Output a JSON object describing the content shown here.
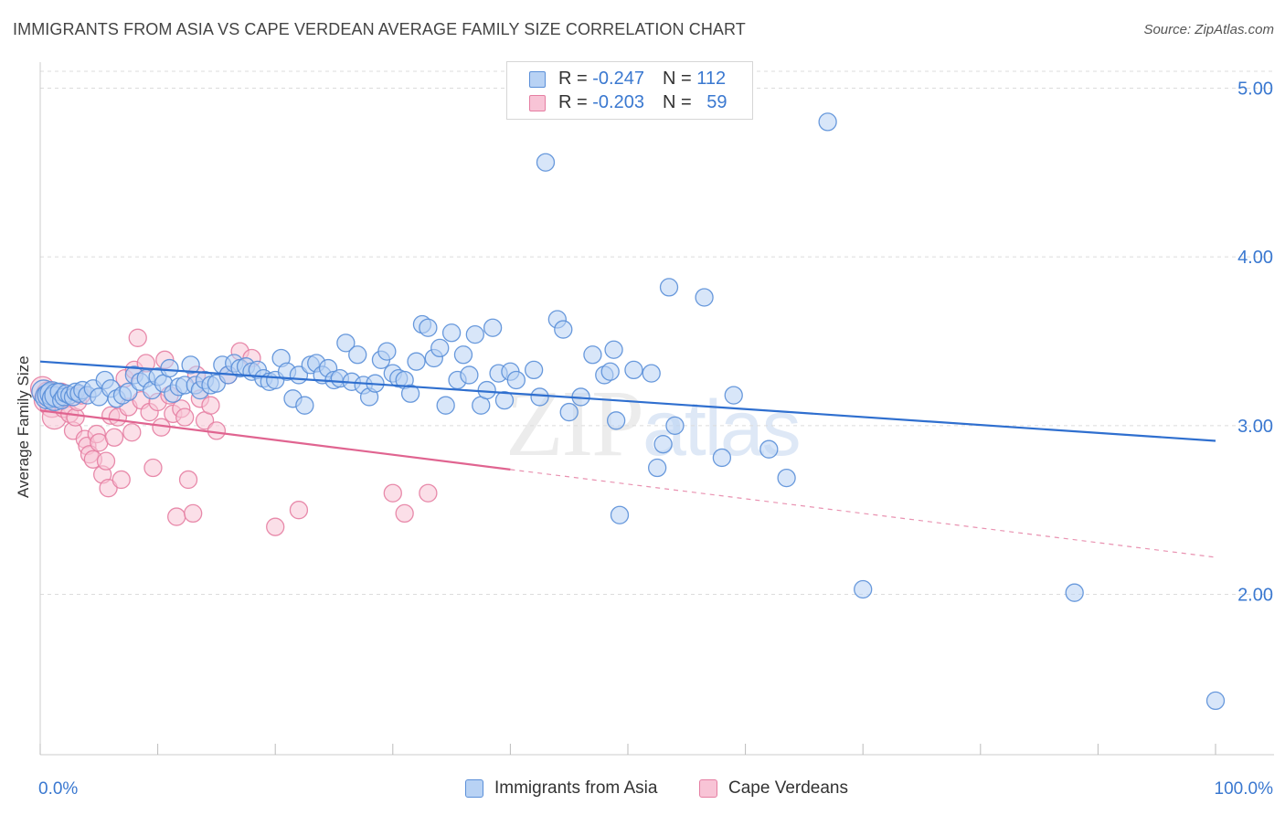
{
  "header": {
    "title": "IMMIGRANTS FROM ASIA VS CAPE VERDEAN AVERAGE FAMILY SIZE CORRELATION CHART",
    "source": "Source: ZipAtlas.com"
  },
  "watermark": {
    "zip": "ZIP",
    "atlas": "atlas"
  },
  "legend_top": {
    "rows": [
      {
        "r_label": "R = ",
        "r_value": "-0.247",
        "n_label": "N = ",
        "n_value": "112"
      },
      {
        "r_label": "R = ",
        "r_value": "-0.203",
        "n_label": "N = ",
        "n_value": "59"
      }
    ]
  },
  "legend_bottom": {
    "series1": "Immigrants from Asia",
    "series2": "Cape Verdeans"
  },
  "colors": {
    "blue_fill": "#b8d2f4",
    "blue_stroke": "#5a8fd8",
    "blue_line": "#2f6fcf",
    "pink_fill": "#f8c4d6",
    "pink_stroke": "#e57ea2",
    "pink_line": "#e06490",
    "tick_label": "#3a78d0"
  },
  "chart_data": {
    "type": "scatter",
    "title": "IMMIGRANTS FROM ASIA VS CAPE VERDEAN AVERAGE FAMILY SIZE CORRELATION CHART",
    "ylabel": "Average Family Size",
    "xlabel": "",
    "x_tick_labels": [
      "0.0%",
      "100.0%"
    ],
    "y_tick_labels": [
      "2.00",
      "3.00",
      "4.00",
      "5.00"
    ],
    "y_ticks": [
      2.0,
      3.0,
      4.0,
      5.0
    ],
    "xlim": [
      0,
      100
    ],
    "ylim": [
      1.05,
      5.1
    ],
    "grid": "horizontal dashed",
    "series": [
      {
        "name": "Immigrants from Asia",
        "color": "#5a8fd8",
        "trend": {
          "x": [
            0,
            100
          ],
          "y": [
            3.38,
            2.91
          ],
          "style": "solid"
        },
        "points": [
          [
            0.3,
            3.2
          ],
          [
            0.6,
            3.17
          ],
          [
            0.8,
            3.18
          ],
          [
            1,
            3.19
          ],
          [
            1.2,
            3.16
          ],
          [
            1.4,
            3.18
          ],
          [
            1.6,
            3.2
          ],
          [
            1.8,
            3.15
          ],
          [
            2,
            3.17
          ],
          [
            2.2,
            3.19
          ],
          [
            2.5,
            3.18
          ],
          [
            2.8,
            3.17
          ],
          [
            3,
            3.2
          ],
          [
            3.3,
            3.19
          ],
          [
            3.6,
            3.21
          ],
          [
            4,
            3.18
          ],
          [
            4.5,
            3.22
          ],
          [
            5,
            3.17
          ],
          [
            5.5,
            3.27
          ],
          [
            6,
            3.22
          ],
          [
            6.5,
            3.16
          ],
          [
            7,
            3.18
          ],
          [
            7.5,
            3.2
          ],
          [
            8,
            3.3
          ],
          [
            8.5,
            3.26
          ],
          [
            9,
            3.28
          ],
          [
            9.5,
            3.21
          ],
          [
            10,
            3.29
          ],
          [
            10.5,
            3.25
          ],
          [
            11,
            3.34
          ],
          [
            11.3,
            3.19
          ],
          [
            11.8,
            3.23
          ],
          [
            12.3,
            3.24
          ],
          [
            12.8,
            3.36
          ],
          [
            13.2,
            3.24
          ],
          [
            13.6,
            3.21
          ],
          [
            14,
            3.27
          ],
          [
            14.5,
            3.24
          ],
          [
            15,
            3.25
          ],
          [
            15.5,
            3.36
          ],
          [
            16,
            3.3
          ],
          [
            16.5,
            3.37
          ],
          [
            17,
            3.34
          ],
          [
            17.5,
            3.35
          ],
          [
            18,
            3.32
          ],
          [
            18.5,
            3.33
          ],
          [
            19,
            3.28
          ],
          [
            19.5,
            3.26
          ],
          [
            20,
            3.27
          ],
          [
            20.5,
            3.4
          ],
          [
            21,
            3.32
          ],
          [
            21.5,
            3.16
          ],
          [
            22,
            3.3
          ],
          [
            22.5,
            3.12
          ],
          [
            23,
            3.36
          ],
          [
            23.5,
            3.37
          ],
          [
            24,
            3.3
          ],
          [
            24.5,
            3.34
          ],
          [
            25,
            3.27
          ],
          [
            25.5,
            3.28
          ],
          [
            26,
            3.49
          ],
          [
            26.5,
            3.26
          ],
          [
            27,
            3.42
          ],
          [
            27.5,
            3.24
          ],
          [
            28,
            3.17
          ],
          [
            28.5,
            3.25
          ],
          [
            29,
            3.39
          ],
          [
            29.5,
            3.44
          ],
          [
            30,
            3.31
          ],
          [
            30.5,
            3.28
          ],
          [
            31,
            3.27
          ],
          [
            31.5,
            3.19
          ],
          [
            32,
            3.38
          ],
          [
            32.5,
            3.6
          ],
          [
            33,
            3.58
          ],
          [
            33.5,
            3.4
          ],
          [
            34,
            3.46
          ],
          [
            34.5,
            3.12
          ],
          [
            35,
            3.55
          ],
          [
            35.5,
            3.27
          ],
          [
            36,
            3.42
          ],
          [
            36.5,
            3.3
          ],
          [
            37,
            3.54
          ],
          [
            37.5,
            3.12
          ],
          [
            38,
            3.21
          ],
          [
            38.5,
            3.58
          ],
          [
            39,
            3.31
          ],
          [
            39.5,
            3.15
          ],
          [
            40,
            3.32
          ],
          [
            40.5,
            3.27
          ],
          [
            42,
            3.33
          ],
          [
            42.5,
            3.17
          ],
          [
            43,
            4.56
          ],
          [
            44,
            3.63
          ],
          [
            44.5,
            3.57
          ],
          [
            45,
            3.08
          ],
          [
            46,
            3.17
          ],
          [
            47,
            3.42
          ],
          [
            48,
            3.3
          ],
          [
            48.5,
            3.32
          ],
          [
            48.8,
            3.45
          ],
          [
            49,
            3.03
          ],
          [
            49.3,
            2.47
          ],
          [
            50.5,
            3.33
          ],
          [
            52,
            3.31
          ],
          [
            52.5,
            2.75
          ],
          [
            53,
            2.89
          ],
          [
            53.5,
            3.82
          ],
          [
            54,
            3.0
          ],
          [
            56.5,
            3.76
          ],
          [
            58,
            2.81
          ],
          [
            59,
            3.18
          ],
          [
            62,
            2.86
          ],
          [
            63.5,
            2.69
          ],
          [
            67,
            4.8
          ],
          [
            70,
            2.03
          ],
          [
            88,
            2.01
          ],
          [
            100,
            1.37
          ]
        ]
      },
      {
        "name": "Cape Verdeans",
        "color": "#e57ea2",
        "trend": {
          "x": [
            0,
            40
          ],
          "y": [
            3.09,
            2.74
          ],
          "style": "solid",
          "dashed_extension": {
            "x": [
              40,
              100
            ],
            "y": [
              2.74,
              2.22
            ]
          }
        },
        "points": [
          [
            0.2,
            3.22
          ],
          [
            0.5,
            3.15
          ],
          [
            0.7,
            3.19
          ],
          [
            1,
            3.12
          ],
          [
            1.2,
            3.05
          ],
          [
            1.5,
            3.18
          ],
          [
            1.8,
            3.2
          ],
          [
            2,
            3.1
          ],
          [
            2.2,
            3.16
          ],
          [
            2.5,
            3.07
          ],
          [
            2.8,
            2.97
          ],
          [
            3,
            3.05
          ],
          [
            3.2,
            3.14
          ],
          [
            3.5,
            3.18
          ],
          [
            3.8,
            2.92
          ],
          [
            4,
            2.88
          ],
          [
            4.2,
            2.83
          ],
          [
            4.5,
            2.8
          ],
          [
            4.8,
            2.95
          ],
          [
            5,
            2.9
          ],
          [
            5.3,
            2.71
          ],
          [
            5.6,
            2.79
          ],
          [
            5.8,
            2.63
          ],
          [
            6,
            3.06
          ],
          [
            6.3,
            2.93
          ],
          [
            6.6,
            3.05
          ],
          [
            6.9,
            2.68
          ],
          [
            7.2,
            3.28
          ],
          [
            7.5,
            3.11
          ],
          [
            7.8,
            2.96
          ],
          [
            8,
            3.33
          ],
          [
            8.3,
            3.52
          ],
          [
            8.6,
            3.15
          ],
          [
            9,
            3.37
          ],
          [
            9.3,
            3.08
          ],
          [
            9.6,
            2.75
          ],
          [
            10,
            3.14
          ],
          [
            10.3,
            2.99
          ],
          [
            10.6,
            3.39
          ],
          [
            11,
            3.18
          ],
          [
            11.3,
            3.07
          ],
          [
            11.6,
            2.46
          ],
          [
            12,
            3.1
          ],
          [
            12.3,
            3.05
          ],
          [
            12.6,
            2.68
          ],
          [
            13,
            2.48
          ],
          [
            13.3,
            3.3
          ],
          [
            13.6,
            3.16
          ],
          [
            14,
            3.03
          ],
          [
            14.5,
            3.12
          ],
          [
            15,
            2.97
          ],
          [
            16,
            3.3
          ],
          [
            17,
            3.44
          ],
          [
            18,
            3.4
          ],
          [
            20,
            2.4
          ],
          [
            22,
            2.5
          ],
          [
            30,
            2.6
          ],
          [
            31,
            2.48
          ],
          [
            33,
            2.6
          ]
        ]
      }
    ]
  }
}
